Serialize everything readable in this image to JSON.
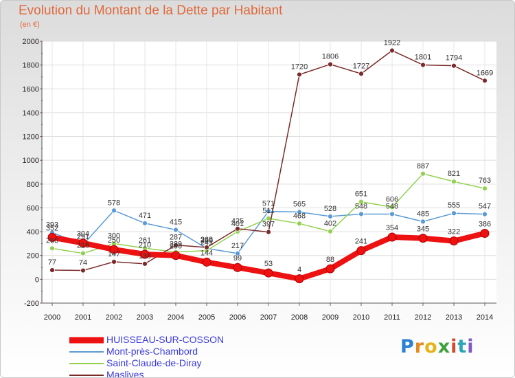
{
  "title": "Evolution du Montant de la Dette par Habitant",
  "subtitle": "(en €)",
  "logo": "Proxiti",
  "chart_data": {
    "type": "line",
    "x": [
      "2000",
      "2001",
      "2002",
      "2003",
      "2004",
      "2005",
      "2006",
      "2007",
      "2008",
      "2009",
      "2010",
      "2011",
      "2012",
      "2013",
      "2014"
    ],
    "ylim": [
      -200,
      2000
    ],
    "yticks": [
      -200,
      0,
      200,
      400,
      600,
      800,
      1000,
      1200,
      1400,
      1600,
      1800,
      2000
    ],
    "grid": true,
    "legend_position": "bottom-left",
    "series": [
      {
        "name": "Mont-près-Chambord",
        "color": "#5b9bd5",
        "values": [
          393,
          291,
          578,
          471,
          415,
          260,
          217,
          571,
          565,
          528,
          548,
          548,
          485,
          555,
          547
        ],
        "labels": [
          "393",
          "291",
          "578",
          "471",
          "415",
          "260",
          "217",
          "571",
          "565",
          "528",
          "548",
          "548",
          "485",
          "555",
          "547"
        ]
      },
      {
        "name": "Saint-Claude-de-Diray",
        "color": "#92d050",
        "values": [
          260,
          218,
          300,
          261,
          229,
          241,
          401,
          511,
          468,
          402,
          651,
          606,
          887,
          821,
          763
        ],
        "labels": [
          "260",
          "218",
          "300",
          "261",
          "229",
          "241",
          "401",
          "511",
          "468",
          "402",
          "651",
          "606",
          "887",
          "821",
          "763"
        ]
      },
      {
        "name": "Maslives",
        "color": "#7b2a2a",
        "values": [
          77,
          74,
          147,
          130,
          287,
          268,
          425,
          397,
          1720,
          1806,
          1727,
          1922,
          1801,
          1794,
          1669
        ],
        "labels": [
          "77",
          "74",
          "147",
          "130",
          "287",
          "268",
          "425",
          "397",
          "1720",
          "1806",
          "1727",
          "1922",
          "1801",
          "1794",
          "1669"
        ]
      },
      {
        "name": "HUISSEAU-SUR-COSSON",
        "color": "#ee1111",
        "values": [
          352,
          304,
          250,
          210,
          200,
          144,
          99,
          53,
          4,
          88,
          241,
          354,
          345,
          322,
          386
        ],
        "labels": [
          "352",
          "304",
          "250",
          "210",
          "200",
          "144",
          "99",
          "53",
          "4",
          "88",
          "241",
          "354",
          "345",
          "322",
          "386"
        ]
      }
    ]
  }
}
